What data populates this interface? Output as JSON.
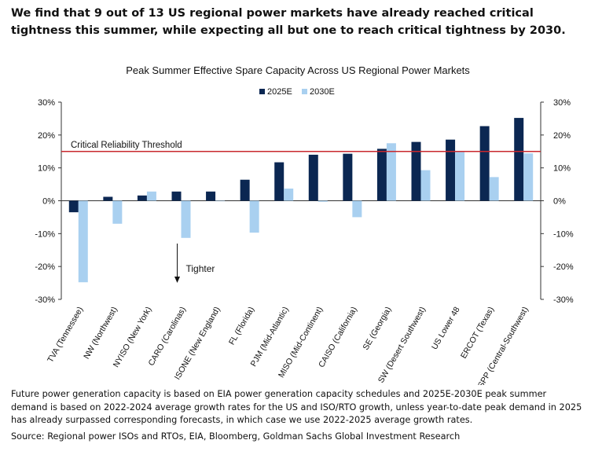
{
  "headline": "We find that 9 out of 13 US regional power markets have already reached critical tightness this summer, while expecting all but one to reach critical tightness by 2030.",
  "footnote": "Future power generation capacity is based on EIA power generation capacity schedules and 2025E-2030E peak summer demand is based on 2022-2024 average growth rates for the US and ISO/RTO growth, unless year-to-date peak demand in 2025 has already surpassed corresponding forecasts, in which case we use 2022-2025 average growth rates.",
  "source": "Source: Regional power ISOs and RTOs, EIA, Bloomberg, Goldman Sachs Global Investment Research",
  "colors": {
    "series_2025": "#0b2752",
    "series_2030": "#a9d0f0",
    "threshold": "#c8282e"
  },
  "chart_data": {
    "type": "bar",
    "title": "Peak Summer Effective Spare Capacity Across US Regional Power Markets",
    "categories": [
      "TVA (Tennessee)",
      "NW (Northwest)",
      "NYISO (New York)",
      "CARO (Carolinas)",
      "ISONE (New England)",
      "FL (Florida)",
      "PJM (Mid-Atlantic)",
      "MISO (Mid-Continent)",
      "CAISO (California)",
      "SE (Georgia)",
      "SW (Desert Southwest)",
      "US Lower 48",
      "ERCOT (Texas)",
      "SPP (Central-Southwest)"
    ],
    "series": [
      {
        "name": "2025E",
        "values": [
          -3.5,
          1.2,
          1.6,
          2.8,
          2.8,
          6.4,
          11.7,
          14.0,
          14.3,
          15.8,
          17.9,
          18.6,
          22.7,
          25.2
        ]
      },
      {
        "name": "2030E",
        "values": [
          -24.8,
          -7.0,
          2.8,
          -11.3,
          0.0,
          -9.7,
          3.7,
          -0.3,
          -5.0,
          17.5,
          9.3,
          14.8,
          7.2,
          14.4
        ]
      }
    ],
    "ylim": [
      -30,
      30
    ],
    "yticks": [
      -30,
      -20,
      -10,
      0,
      10,
      20,
      30
    ],
    "ytick_labels": [
      "-30%",
      "-20%",
      "-10%",
      "0%",
      "10%",
      "20%",
      "30%"
    ],
    "threshold": {
      "value": 15,
      "label": "Critical Reliability Threshold"
    },
    "annotation": {
      "label": "Tighter"
    },
    "legend_position": "top-center"
  }
}
